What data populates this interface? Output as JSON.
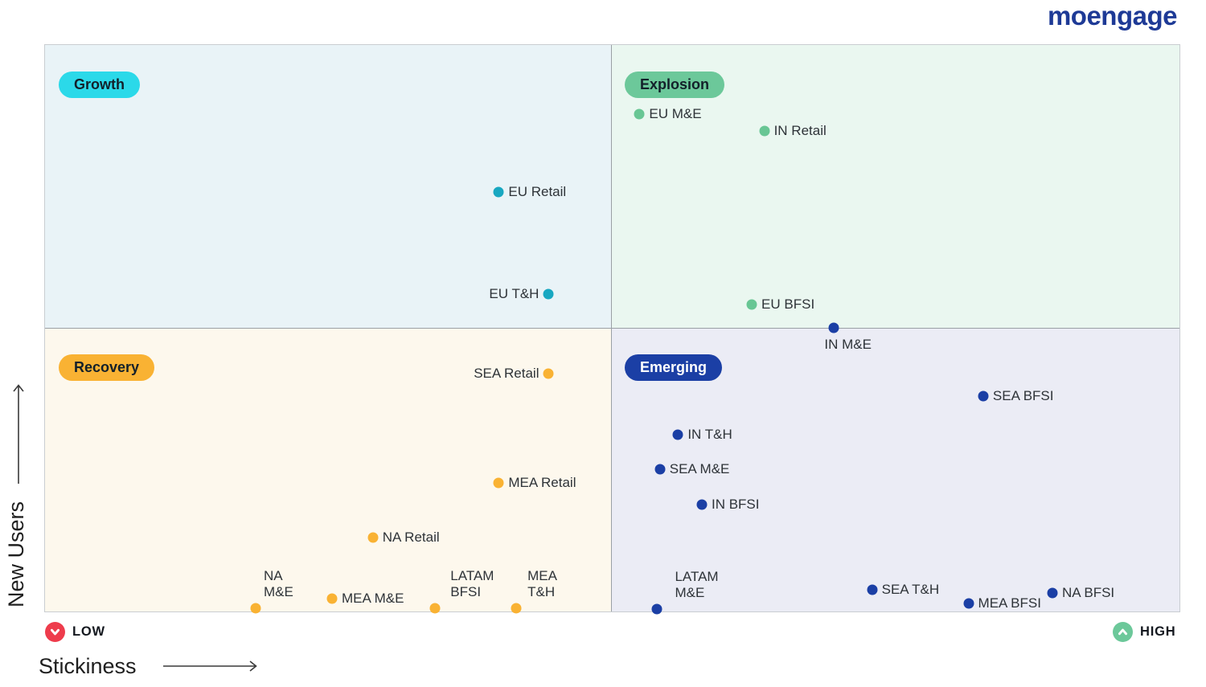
{
  "logo": {
    "text": "moengage",
    "color": "#1e3a96"
  },
  "axes": {
    "y_label": "New Users",
    "x_label": "Stickiness",
    "low_label": "LOW",
    "high_label": "HIGH",
    "low_color": "#ee3c4c",
    "high_color": "#6cc89a"
  },
  "quadrants": [
    {
      "id": "growth",
      "label": "Growth",
      "badge_bg": "#2bd9e9",
      "badge_text": "#13202a",
      "bg": "#e9f3f7",
      "dot_color": "#18a7c1"
    },
    {
      "id": "explosion",
      "label": "Explosion",
      "badge_bg": "#6cc89a",
      "badge_text": "#13202a",
      "bg": "#eaf7f0",
      "dot_color": "#68c694"
    },
    {
      "id": "recovery",
      "label": "Recovery",
      "badge_bg": "#f9b233",
      "badge_text": "#13202a",
      "bg": "#fdf8ed",
      "dot_color": "#f9b233"
    },
    {
      "id": "emerging",
      "label": "Emerging",
      "badge_bg": "#1b3fa5",
      "badge_text": "#ffffff",
      "bg": "#ebecf5",
      "dot_color": "#1b3fa5"
    }
  ],
  "chart_data": {
    "type": "scatter",
    "title": "",
    "x_axis": {
      "label": "Stickiness",
      "scale": "qualitative",
      "range": [
        "LOW",
        "HIGH"
      ]
    },
    "y_axis": {
      "label": "New Users",
      "scale": "qualitative",
      "range": [
        "LOW",
        "HIGH"
      ]
    },
    "legend": "quadrant badges (Growth, Explosion, Recovery, Emerging)",
    "points": [
      {
        "label": "EU Retail",
        "series": "growth",
        "x_pct": 40.0,
        "y_pct": 74.0,
        "label_side": "right"
      },
      {
        "label": "EU T&H",
        "series": "growth",
        "x_pct": 44.4,
        "y_pct": 56.0,
        "label_side": "left"
      },
      {
        "label": "EU M&E",
        "series": "explosion",
        "x_pct": 52.4,
        "y_pct": 87.8,
        "label_side": "right"
      },
      {
        "label": "IN Retail",
        "series": "explosion",
        "x_pct": 63.4,
        "y_pct": 84.8,
        "label_side": "right"
      },
      {
        "label": "EU BFSI",
        "series": "explosion",
        "x_pct": 62.3,
        "y_pct": 54.2,
        "label_side": "right"
      },
      {
        "label": "IN M&E",
        "series": "emerging",
        "x_pct": 69.5,
        "y_pct": 50.1,
        "label_side": "below",
        "label_dx": 18
      },
      {
        "label": "SEA Retail",
        "series": "recovery",
        "x_pct": 44.4,
        "y_pct": 42.0,
        "label_side": "left"
      },
      {
        "label": "MEA Retail",
        "series": "recovery",
        "x_pct": 40.0,
        "y_pct": 22.7,
        "label_side": "right"
      },
      {
        "label": "NA Retail",
        "series": "recovery",
        "x_pct": 28.9,
        "y_pct": 13.0,
        "label_side": "right"
      },
      {
        "label": "NA M&E",
        "series": "recovery",
        "x_pct": 18.6,
        "y_pct": 0.5,
        "label_side": "above",
        "label_dx": 28
      },
      {
        "label": "MEA M&E",
        "series": "recovery",
        "x_pct": 25.3,
        "y_pct": 2.3,
        "label_side": "right"
      },
      {
        "label": "LATAM\nBFSI",
        "series": "recovery",
        "x_pct": 34.4,
        "y_pct": 0.5,
        "label_side": "above",
        "label_dx": 46
      },
      {
        "label": "MEA\nT&H",
        "series": "recovery",
        "x_pct": 41.5,
        "y_pct": 0.5,
        "label_side": "above",
        "label_dx": 33
      },
      {
        "label": "SEA BFSI",
        "series": "emerging",
        "x_pct": 82.7,
        "y_pct": 38.0,
        "label_side": "right"
      },
      {
        "label": "IN T&H",
        "series": "emerging",
        "x_pct": 55.8,
        "y_pct": 31.2,
        "label_side": "right"
      },
      {
        "label": "SEA M&E",
        "series": "emerging",
        "x_pct": 54.2,
        "y_pct": 25.1,
        "label_side": "right"
      },
      {
        "label": "IN BFSI",
        "series": "emerging",
        "x_pct": 57.9,
        "y_pct": 18.9,
        "label_side": "right"
      },
      {
        "label": "LATAM M&E",
        "series": "emerging",
        "x_pct": 53.9,
        "y_pct": 0.4,
        "label_side": "above",
        "label_dx": 50
      },
      {
        "label": "SEA T&H",
        "series": "emerging",
        "x_pct": 72.9,
        "y_pct": 3.8,
        "label_side": "right"
      },
      {
        "label": "MEA BFSI",
        "series": "emerging",
        "x_pct": 81.4,
        "y_pct": 1.4,
        "label_side": "right"
      },
      {
        "label": "NA BFSI",
        "series": "emerging",
        "x_pct": 88.8,
        "y_pct": 3.3,
        "label_side": "right"
      }
    ]
  }
}
